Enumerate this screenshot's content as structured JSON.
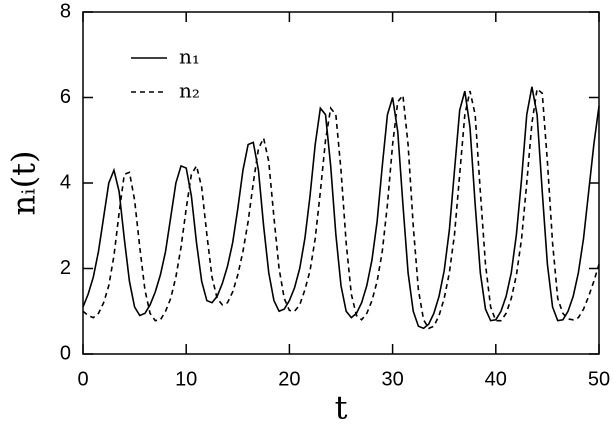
{
  "chart_data": {
    "type": "line",
    "xlabel": "t",
    "ylabel": "nᵢ(t)",
    "x": [
      0,
      0.5,
      1,
      1.5,
      2,
      2.5,
      3,
      3.5,
      4,
      4.5,
      5,
      5.5,
      6,
      6.5,
      7,
      7.5,
      8,
      8.5,
      9,
      9.5,
      10,
      10.5,
      11,
      11.5,
      12,
      12.5,
      13,
      13.5,
      14,
      14.5,
      15,
      15.5,
      16,
      16.5,
      17,
      17.5,
      18,
      18.5,
      19,
      19.5,
      20,
      20.5,
      21,
      21.5,
      22,
      22.5,
      23,
      23.5,
      24,
      24.5,
      25,
      25.5,
      26,
      26.5,
      27,
      27.5,
      28,
      28.5,
      29,
      29.5,
      30,
      30.5,
      31,
      31.5,
      32,
      32.5,
      33,
      33.5,
      34,
      34.5,
      35,
      35.5,
      36,
      36.5,
      37,
      37.5,
      38,
      38.5,
      39,
      39.5,
      40,
      40.5,
      41,
      41.5,
      42,
      42.5,
      43,
      43.5,
      44,
      44.5,
      45,
      45.5,
      46,
      46.5,
      47,
      47.5,
      48,
      48.5,
      49,
      49.5,
      50
    ],
    "series": [
      {
        "name": "n₁",
        "color": "#000000",
        "line_style": "solid",
        "values": [
          1.1,
          1.4,
          1.8,
          2.4,
          3.2,
          4.0,
          4.3,
          3.8,
          2.7,
          1.7,
          1.1,
          0.9,
          0.95,
          1.15,
          1.45,
          1.85,
          2.4,
          3.2,
          4.0,
          4.4,
          4.35,
          3.7,
          2.6,
          1.7,
          1.25,
          1.2,
          1.35,
          1.65,
          2.05,
          2.6,
          3.4,
          4.3,
          4.9,
          4.95,
          4.3,
          3.0,
          1.9,
          1.25,
          1.0,
          1.05,
          1.25,
          1.55,
          2.0,
          2.7,
          3.7,
          4.9,
          5.75,
          5.6,
          4.4,
          2.8,
          1.6,
          1.0,
          0.85,
          0.95,
          1.2,
          1.6,
          2.2,
          3.1,
          4.4,
          5.6,
          6.0,
          5.2,
          3.5,
          1.9,
          1.0,
          0.65,
          0.6,
          0.7,
          0.95,
          1.35,
          1.95,
          2.9,
          4.3,
          5.7,
          6.15,
          5.3,
          3.5,
          1.9,
          1.05,
          0.78,
          0.8,
          1.0,
          1.35,
          1.9,
          2.8,
          4.1,
          5.6,
          6.25,
          5.6,
          3.8,
          2.1,
          1.1,
          0.78,
          0.8,
          1.0,
          1.35,
          1.9,
          2.7,
          3.8,
          4.9,
          5.8
        ]
      },
      {
        "name": "n₂",
        "color": "#000000",
        "line_style": "dashed",
        "values": [
          1.0,
          0.9,
          0.85,
          0.95,
          1.2,
          1.6,
          2.3,
          3.3,
          4.2,
          4.25,
          3.6,
          2.5,
          1.5,
          0.95,
          0.78,
          0.8,
          1.0,
          1.3,
          1.8,
          2.5,
          3.4,
          4.2,
          4.4,
          3.9,
          2.8,
          1.8,
          1.3,
          1.15,
          1.2,
          1.45,
          1.85,
          2.4,
          3.1,
          4.0,
          4.8,
          5.05,
          4.5,
          3.2,
          2.0,
          1.3,
          1.02,
          1.0,
          1.15,
          1.5,
          1.95,
          2.7,
          3.8,
          5.0,
          5.75,
          5.6,
          4.3,
          2.6,
          1.4,
          0.9,
          0.8,
          0.95,
          1.25,
          1.7,
          2.4,
          3.5,
          4.9,
          5.9,
          6.05,
          4.9,
          3.0,
          1.5,
          0.8,
          0.6,
          0.65,
          0.9,
          1.3,
          1.9,
          2.8,
          4.2,
          5.6,
          6.15,
          5.6,
          3.8,
          2.1,
          1.1,
          0.78,
          0.78,
          0.95,
          1.3,
          1.85,
          2.7,
          4.0,
          5.4,
          6.2,
          6.1,
          4.5,
          2.6,
          1.3,
          0.95,
          0.82,
          0.8,
          0.85,
          1.05,
          1.35,
          1.7,
          2.1
        ]
      }
    ],
    "xlim": [
      0,
      50
    ],
    "xticks": [
      0,
      10,
      20,
      30,
      40,
      50
    ],
    "ylim": [
      0,
      8
    ],
    "yticks": [
      0,
      2,
      4,
      6,
      8
    ],
    "legend": "upper left"
  }
}
